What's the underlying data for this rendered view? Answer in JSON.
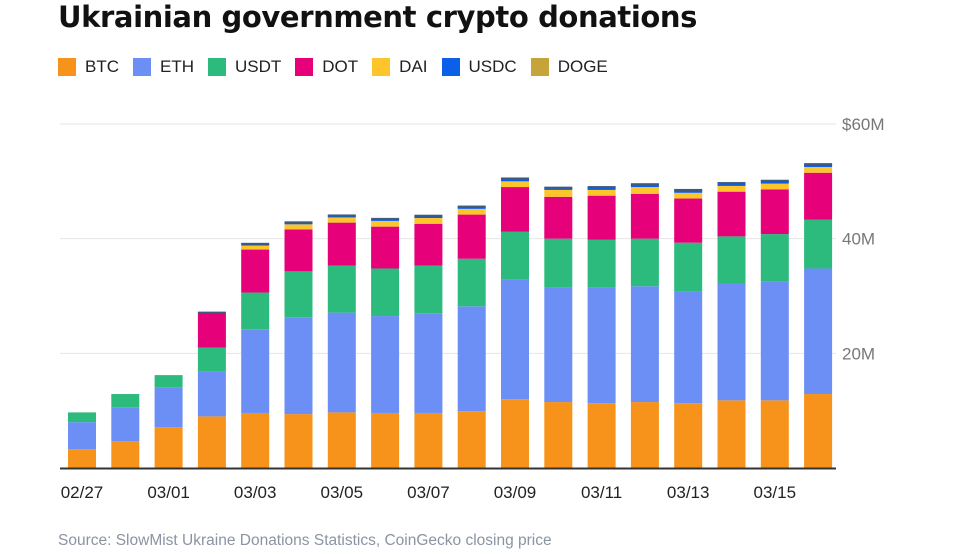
{
  "chart_data": {
    "type": "bar",
    "stacked": true,
    "title": "Ukrainian government crypto donations",
    "xlabel": "",
    "ylabel": "",
    "ylim": [
      0,
      60
    ],
    "y_unit": "$M",
    "yticks": [
      {
        "value": 20,
        "label": "20M"
      },
      {
        "value": 40,
        "label": "40M"
      },
      {
        "value": 60,
        "label": "$60M"
      }
    ],
    "grid": true,
    "legend_position": "top-left",
    "categories": [
      "02/27",
      "02/28",
      "03/01",
      "03/02",
      "03/03",
      "03/04",
      "03/05",
      "03/06",
      "03/07",
      "03/08",
      "03/09",
      "03/10",
      "03/11",
      "03/12",
      "03/13",
      "03/14",
      "03/15",
      "03/16"
    ],
    "xtick_labels": [
      {
        "index": 0,
        "label": "02/27"
      },
      {
        "index": 2,
        "label": "03/01"
      },
      {
        "index": 4,
        "label": "03/03"
      },
      {
        "index": 6,
        "label": "03/05"
      },
      {
        "index": 8,
        "label": "03/07"
      },
      {
        "index": 10,
        "label": "03/09"
      },
      {
        "index": 12,
        "label": "03/11"
      },
      {
        "index": 14,
        "label": "03/13"
      },
      {
        "index": 16,
        "label": "03/15"
      }
    ],
    "series": [
      {
        "name": "BTC",
        "color": "#f7931a",
        "values": [
          3.3,
          4.7,
          7.1,
          9.0,
          9.6,
          9.4,
          9.7,
          9.6,
          9.6,
          9.9,
          12.0,
          11.5,
          11.3,
          11.5,
          11.3,
          11.8,
          11.8,
          12.9
        ]
      },
      {
        "name": "ETH",
        "color": "#6b8ff5",
        "values": [
          4.7,
          5.9,
          7.0,
          7.8,
          14.6,
          16.9,
          17.4,
          16.9,
          17.4,
          18.3,
          20.9,
          20.0,
          20.2,
          20.2,
          19.5,
          20.3,
          20.7,
          21.9
        ]
      },
      {
        "name": "USDT",
        "color": "#2cbb7d",
        "values": [
          1.7,
          2.3,
          2.1,
          4.2,
          6.4,
          8.0,
          8.2,
          8.3,
          8.3,
          8.3,
          8.3,
          8.5,
          8.3,
          8.3,
          8.5,
          8.3,
          8.3,
          8.5
        ]
      },
      {
        "name": "DOT",
        "color": "#e6007a",
        "values": [
          0,
          0,
          0,
          6.1,
          7.5,
          7.3,
          7.5,
          7.3,
          7.3,
          7.7,
          7.8,
          7.3,
          7.7,
          7.8,
          7.7,
          7.8,
          7.8,
          8.2
        ]
      },
      {
        "name": "DAI",
        "color": "#fcc52c",
        "values": [
          0,
          0,
          0,
          0,
          0.7,
          0.9,
          0.9,
          1.0,
          1.0,
          1.0,
          1.0,
          1.2,
          1.0,
          1.2,
          1.0,
          1.0,
          1.0,
          1.0
        ]
      },
      {
        "name": "USDC",
        "color": "#0b5fe8",
        "values": [
          0,
          0,
          0,
          0,
          0.3,
          0.35,
          0.35,
          0.35,
          0.4,
          0.4,
          0.5,
          0.4,
          0.5,
          0.5,
          0.5,
          0.5,
          0.5,
          0.5
        ]
      },
      {
        "name": "DOGE",
        "color": "#c6a43a",
        "values": [
          0,
          0,
          0,
          0,
          0,
          0,
          0,
          0,
          0,
          0,
          0,
          0,
          0,
          0,
          0,
          0,
          0,
          0
        ]
      }
    ],
    "top_cap_color": "#3f5a7a",
    "source": "Source: SlowMist Ukraine Donations Statistics, CoinGecko closing price"
  }
}
